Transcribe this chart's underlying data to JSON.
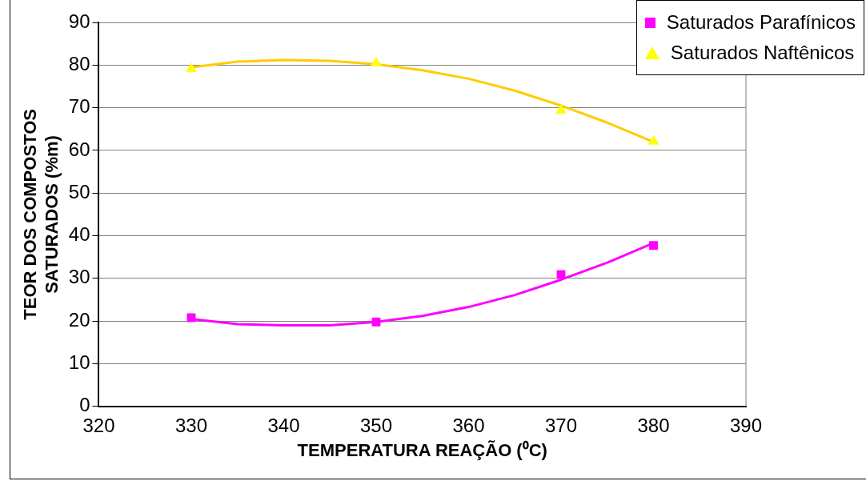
{
  "chart_data": {
    "type": "scatter",
    "xlabel": "TEMPERATURA REAÇÃO (⁰C)",
    "ylabel": "TEOR DOS COMPOSTOS\nSATURADOS (%m)",
    "xlim": [
      320,
      390
    ],
    "xticks": [
      320,
      330,
      340,
      350,
      360,
      370,
      380,
      390
    ],
    "ylim": [
      0,
      90
    ],
    "yticks": [
      0,
      10,
      20,
      30,
      40,
      50,
      60,
      70,
      80,
      90
    ],
    "grid": "y",
    "legend": "top right",
    "series": [
      {
        "name": "Saturados Parafínicos",
        "type": "scatter",
        "marker": "square",
        "color": "#ff00ff",
        "x": [
          330,
          350,
          370,
          380
        ],
        "values": [
          20.8,
          19.8,
          30.9,
          37.7
        ]
      },
      {
        "name": "Saturados Naftênicos",
        "type": "scatter",
        "marker": "triangle",
        "color": "#ffff00",
        "x": [
          330,
          350,
          370,
          380
        ],
        "values": [
          79.1,
          80.5,
          69.4,
          62.1
        ]
      },
      {
        "type": "line",
        "marker": "none",
        "color": "#ff00ff",
        "x": [
          330,
          335,
          340,
          345,
          350,
          355,
          360,
          365,
          370,
          375,
          380
        ],
        "values": [
          20.5,
          19.3,
          19,
          19,
          19.8,
          21.2,
          23.3,
          26.1,
          29.7,
          33.7,
          38.3
        ]
      },
      {
        "type": "line",
        "marker": "none",
        "color": "#ffcc00",
        "x": [
          330,
          335,
          340,
          345,
          350,
          355,
          360,
          365,
          370,
          375,
          380
        ],
        "values": [
          79.5,
          80.8,
          81.2,
          81,
          80.2,
          78.8,
          76.8,
          74,
          70.5,
          66.5,
          62
        ]
      }
    ]
  }
}
